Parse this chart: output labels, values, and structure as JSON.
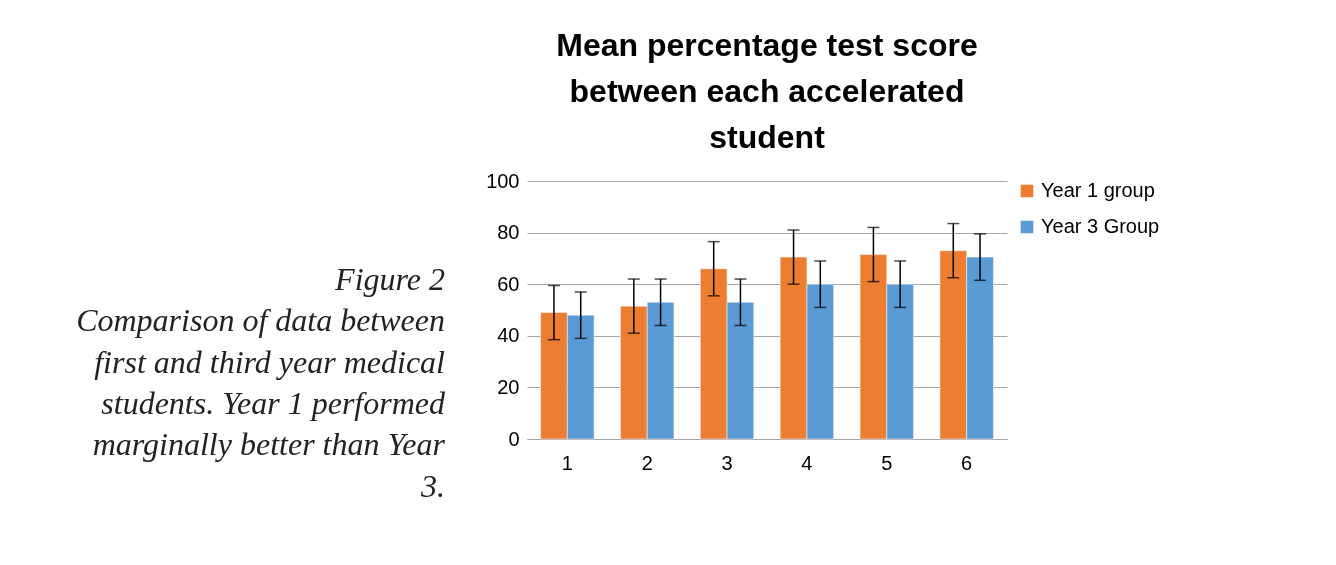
{
  "chart_data": {
    "type": "bar",
    "title": "Mean percentage test score between each accelerated student",
    "annotations": [
      "Figure 2",
      "Comparison of  data between first and third year medical students. Year 1 performed marginally better than Year 3."
    ],
    "categories": [
      "1",
      "2",
      "3",
      "4",
      "5",
      "6"
    ],
    "series": [
      {
        "name": "Year 1 group",
        "color": "#ed7d31",
        "values": [
          49,
          51.5,
          66,
          70.5,
          71.5,
          73
        ],
        "errors": [
          10.5,
          10.5,
          10.5,
          10.5,
          10.5,
          10.5
        ]
      },
      {
        "name": "Year 3 Group",
        "color": "#5b9bd5",
        "values": [
          48,
          53,
          53,
          60,
          60,
          70.5
        ],
        "errors": [
          9,
          9,
          9,
          9,
          9,
          9
        ]
      }
    ],
    "ylim": [
      0,
      100
    ],
    "yticks": [
      0,
      20,
      40,
      60,
      80,
      100
    ],
    "grid": "y",
    "legend": "right"
  }
}
